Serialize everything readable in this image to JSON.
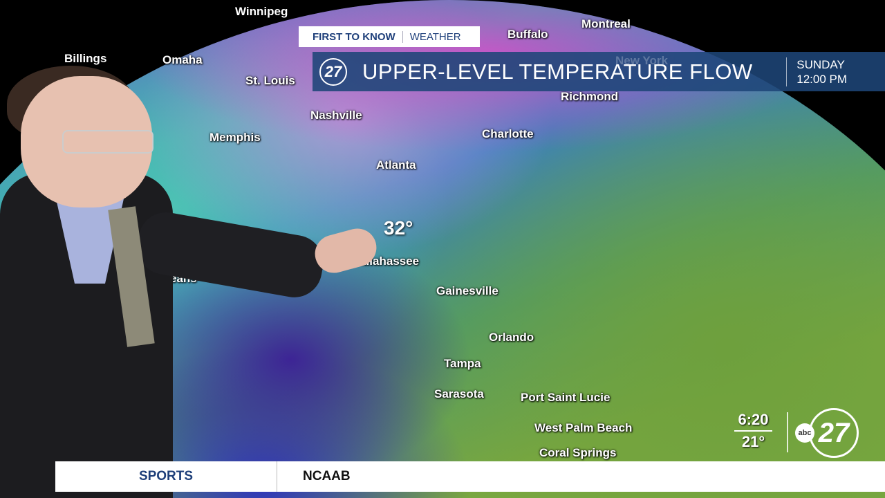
{
  "graphic": {
    "tag_primary": "FIRST TO KNOW",
    "tag_secondary": "WEATHER",
    "logo": "27",
    "title": "UPPER-LEVEL TEMPERATURE FLOW",
    "day": "SUNDAY",
    "time": "12:00 PM"
  },
  "map": {
    "temperature_callout": "32°",
    "cities": [
      "Winnipeg",
      "Billings",
      "Omaha",
      "St. Louis",
      "Nashville",
      "Memphis",
      "Buffalo",
      "Montreal",
      "New York",
      "Richmond",
      "Charlotte",
      "Atlanta",
      "Tallahassee",
      "Gainesville",
      "Orlando",
      "Tampa",
      "Sarasota",
      "Port Saint Lucie",
      "West Palm Beach",
      "Coral Springs",
      "eans"
    ]
  },
  "bug": {
    "clock": "6:20",
    "current_temp": "21°",
    "network": "abc",
    "channel": "27"
  },
  "ticker": {
    "section": "SPORTS",
    "headline": "NCAAB"
  },
  "colors": {
    "banner": "#1e4678",
    "ticker_accent": "#1e3f7a",
    "cold": "#3c28a0",
    "warm": "#7aa840"
  }
}
